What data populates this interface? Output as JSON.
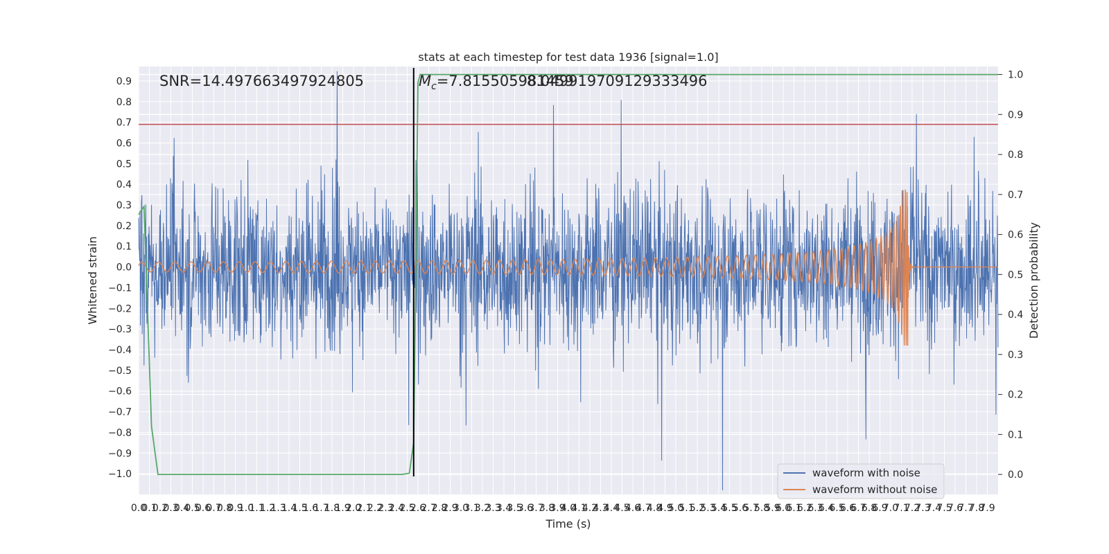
{
  "chart_data": {
    "type": "line",
    "title": "stats at each timestep for test data 1936 [signal=1.0]",
    "xlabel": "Time (s)",
    "ylabel": "Whitened strain",
    "y2label": "Detection probability",
    "xlim": [
      0.0,
      8.0
    ],
    "ylim": [
      -1.1,
      0.97
    ],
    "y2lim": [
      -0.05,
      1.02
    ],
    "x_ticks": [
      0.0,
      0.1,
      0.2,
      0.3,
      0.4,
      0.5,
      0.6,
      0.7,
      0.8,
      0.9,
      1.0,
      1.1,
      1.2,
      1.3,
      1.4,
      1.5,
      1.6,
      1.7,
      1.8,
      1.9,
      2.0,
      2.1,
      2.2,
      2.3,
      2.4,
      2.5,
      2.6,
      2.7,
      2.8,
      2.9,
      3.0,
      3.1,
      3.2,
      3.3,
      3.4,
      3.5,
      3.6,
      3.7,
      3.8,
      3.9,
      4.0,
      4.1,
      4.2,
      4.3,
      4.4,
      4.5,
      4.6,
      4.7,
      4.8,
      4.9,
      5.0,
      5.1,
      5.2,
      5.3,
      5.4,
      5.5,
      5.6,
      5.7,
      5.8,
      5.9,
      6.0,
      6.1,
      6.2,
      6.3,
      6.4,
      6.5,
      6.6,
      6.7,
      6.8,
      6.9,
      7.0,
      7.1,
      7.2,
      7.3,
      7.4,
      7.5,
      7.6,
      7.7,
      7.8,
      7.9
    ],
    "y_ticks": [
      0.9,
      0.8,
      0.7,
      0.6,
      0.5,
      0.4,
      0.3,
      0.2,
      0.1,
      0.0,
      -0.1,
      -0.2,
      -0.3,
      -0.4,
      -0.5,
      -0.6,
      -0.7,
      -0.8,
      -0.9,
      -1.0
    ],
    "y2_ticks": [
      1.0,
      0.9,
      0.8,
      0.7,
      0.6,
      0.5,
      0.4,
      0.3,
      0.2,
      0.1,
      0.0
    ],
    "annotations": {
      "snr": "SNR=14.497663497924805",
      "mc_prefix": "M",
      "mc_sub": "c",
      "mc_value": "=7.815505981459",
      "mc_overlap": "8.049919709129333496"
    },
    "threshold_line_y": 0.69,
    "marker_x": 2.56,
    "series": [
      {
        "name": "waveform with noise",
        "color": "#4c72b0",
        "kind": "noise",
        "amplitude": 0.27,
        "x_range": [
          0.0,
          8.0
        ]
      },
      {
        "name": "waveform without noise",
        "color": "#dd8452",
        "kind": "chirp",
        "x_range": [
          0.0,
          8.0
        ],
        "merger_x": 7.16,
        "peak": 0.38
      },
      {
        "name": "detection probability",
        "color": "#55a868",
        "axis": "right",
        "x": [
          0.0,
          0.05,
          0.12,
          0.18,
          2.45,
          2.52,
          2.56,
          2.58,
          2.6,
          2.62,
          8.0
        ],
        "y": [
          0.65,
          0.67,
          0.12,
          0.0,
          0.0,
          0.003,
          0.08,
          0.5,
          0.98,
          1.0,
          1.0
        ]
      }
    ],
    "legend": {
      "position": "bottom-right",
      "entries": [
        "waveform with noise",
        "waveform without noise"
      ]
    },
    "colors": {
      "plot_bg": "#eaeaf2",
      "grid": "#ffffff",
      "threshold": "#c44e52",
      "marker": "#000000"
    }
  }
}
